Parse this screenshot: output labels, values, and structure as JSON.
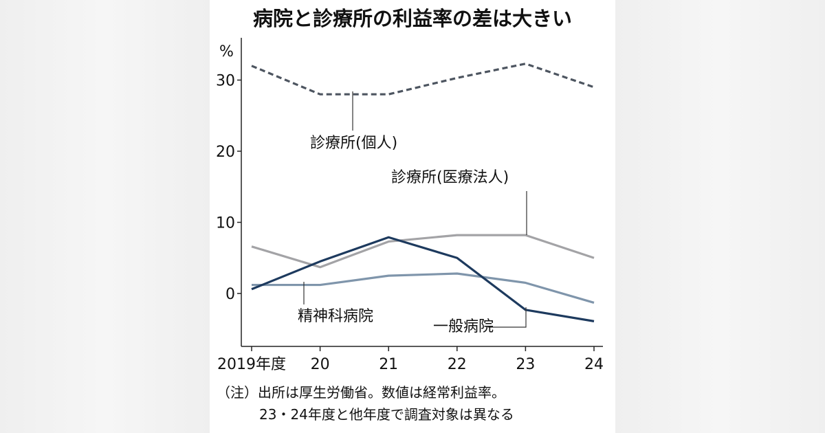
{
  "chart_data": {
    "type": "line",
    "title": "病院と診療所の利益率の差は大きい",
    "ylabel": "%",
    "ylim": [
      -7,
      35
    ],
    "yticks": [
      0,
      10,
      20,
      30
    ],
    "categories": [
      "2019年度",
      "20",
      "21",
      "22",
      "23",
      "24"
    ],
    "grid": false,
    "series": [
      {
        "name": "診療所(個人)",
        "values": [
          32.0,
          28.0,
          28.0,
          30.3,
          32.3,
          29.0
        ],
        "color": "#4d5560",
        "dash": "dashed"
      },
      {
        "name": "診療所(医療法人)",
        "values": [
          6.6,
          3.7,
          7.3,
          8.2,
          8.2,
          5.0
        ],
        "color": "#a3a3a6",
        "dash": "solid"
      },
      {
        "name": "精神科病院",
        "values": [
          1.2,
          1.2,
          2.5,
          2.8,
          1.5,
          -1.3
        ],
        "color": "#7f95ab",
        "dash": "solid"
      },
      {
        "name": "一般病院",
        "values": [
          0.6,
          4.5,
          7.9,
          5.0,
          -2.3,
          -3.9
        ],
        "color": "#1d3a5e",
        "dash": "solid"
      }
    ],
    "note_lines": [
      "（注）出所は厚生労働省。数値は経常利益率。",
      "23・24年度と他年度で調査対象は異なる"
    ]
  }
}
